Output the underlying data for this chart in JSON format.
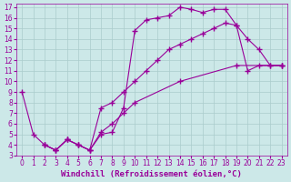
{
  "xlabel": "Windchill (Refroidissement éolien,°C)",
  "background_color": "#cce8e8",
  "line_color": "#990099",
  "xlim": [
    -0.5,
    23.5
  ],
  "ylim": [
    3,
    17.3
  ],
  "xticks": [
    0,
    1,
    2,
    3,
    4,
    5,
    6,
    7,
    8,
    9,
    10,
    11,
    12,
    13,
    14,
    15,
    16,
    17,
    18,
    19,
    20,
    21,
    22,
    23
  ],
  "yticks": [
    3,
    4,
    5,
    6,
    7,
    8,
    9,
    10,
    11,
    12,
    13,
    14,
    15,
    16,
    17
  ],
  "grid_color": "#aacccc",
  "marker": "+",
  "markersize": 4,
  "linewidth": 0.8,
  "tick_fontsize": 5.5,
  "xlabel_fontsize": 6.5,
  "tick_color": "#990099",
  "label_color": "#990099",
  "series1": [
    [
      0,
      9
    ],
    [
      1,
      5
    ],
    [
      2,
      4
    ],
    [
      3,
      3.5
    ],
    [
      4,
      4.5
    ],
    [
      5,
      4
    ],
    [
      6,
      3.5
    ],
    [
      7,
      5
    ],
    [
      8,
      5.2
    ],
    [
      9,
      7.5
    ],
    [
      10,
      14.8
    ],
    [
      11,
      15.8
    ],
    [
      12,
      16
    ],
    [
      13,
      16.2
    ],
    [
      14,
      17
    ],
    [
      15,
      16.8
    ],
    [
      16,
      16.5
    ],
    [
      17,
      16.8
    ],
    [
      18,
      16.8
    ],
    [
      19,
      15.3
    ],
    [
      20,
      14
    ],
    [
      21,
      13
    ],
    [
      22,
      11.5
    ],
    [
      23,
      11.5
    ]
  ],
  "series2": [
    [
      2,
      4
    ],
    [
      3,
      3.5
    ],
    [
      4,
      4.5
    ],
    [
      5,
      4
    ],
    [
      6,
      3.5
    ],
    [
      7,
      7.5
    ],
    [
      8,
      8
    ],
    [
      9,
      9
    ],
    [
      10,
      10
    ],
    [
      11,
      11
    ],
    [
      12,
      12
    ],
    [
      13,
      13
    ],
    [
      14,
      13.5
    ],
    [
      15,
      14
    ],
    [
      16,
      14.5
    ],
    [
      17,
      15
    ],
    [
      18,
      15.5
    ],
    [
      19,
      15.3
    ],
    [
      20,
      11
    ],
    [
      21,
      11.5
    ],
    [
      22,
      11.5
    ],
    [
      23,
      11.5
    ]
  ],
  "series3": [
    [
      2,
      4
    ],
    [
      3,
      3.5
    ],
    [
      4,
      4.5
    ],
    [
      5,
      4
    ],
    [
      6,
      3.5
    ],
    [
      7,
      5.2
    ],
    [
      8,
      6
    ],
    [
      9,
      7
    ],
    [
      10,
      8
    ],
    [
      14,
      10
    ],
    [
      19,
      11.5
    ],
    [
      23,
      11.5
    ]
  ]
}
